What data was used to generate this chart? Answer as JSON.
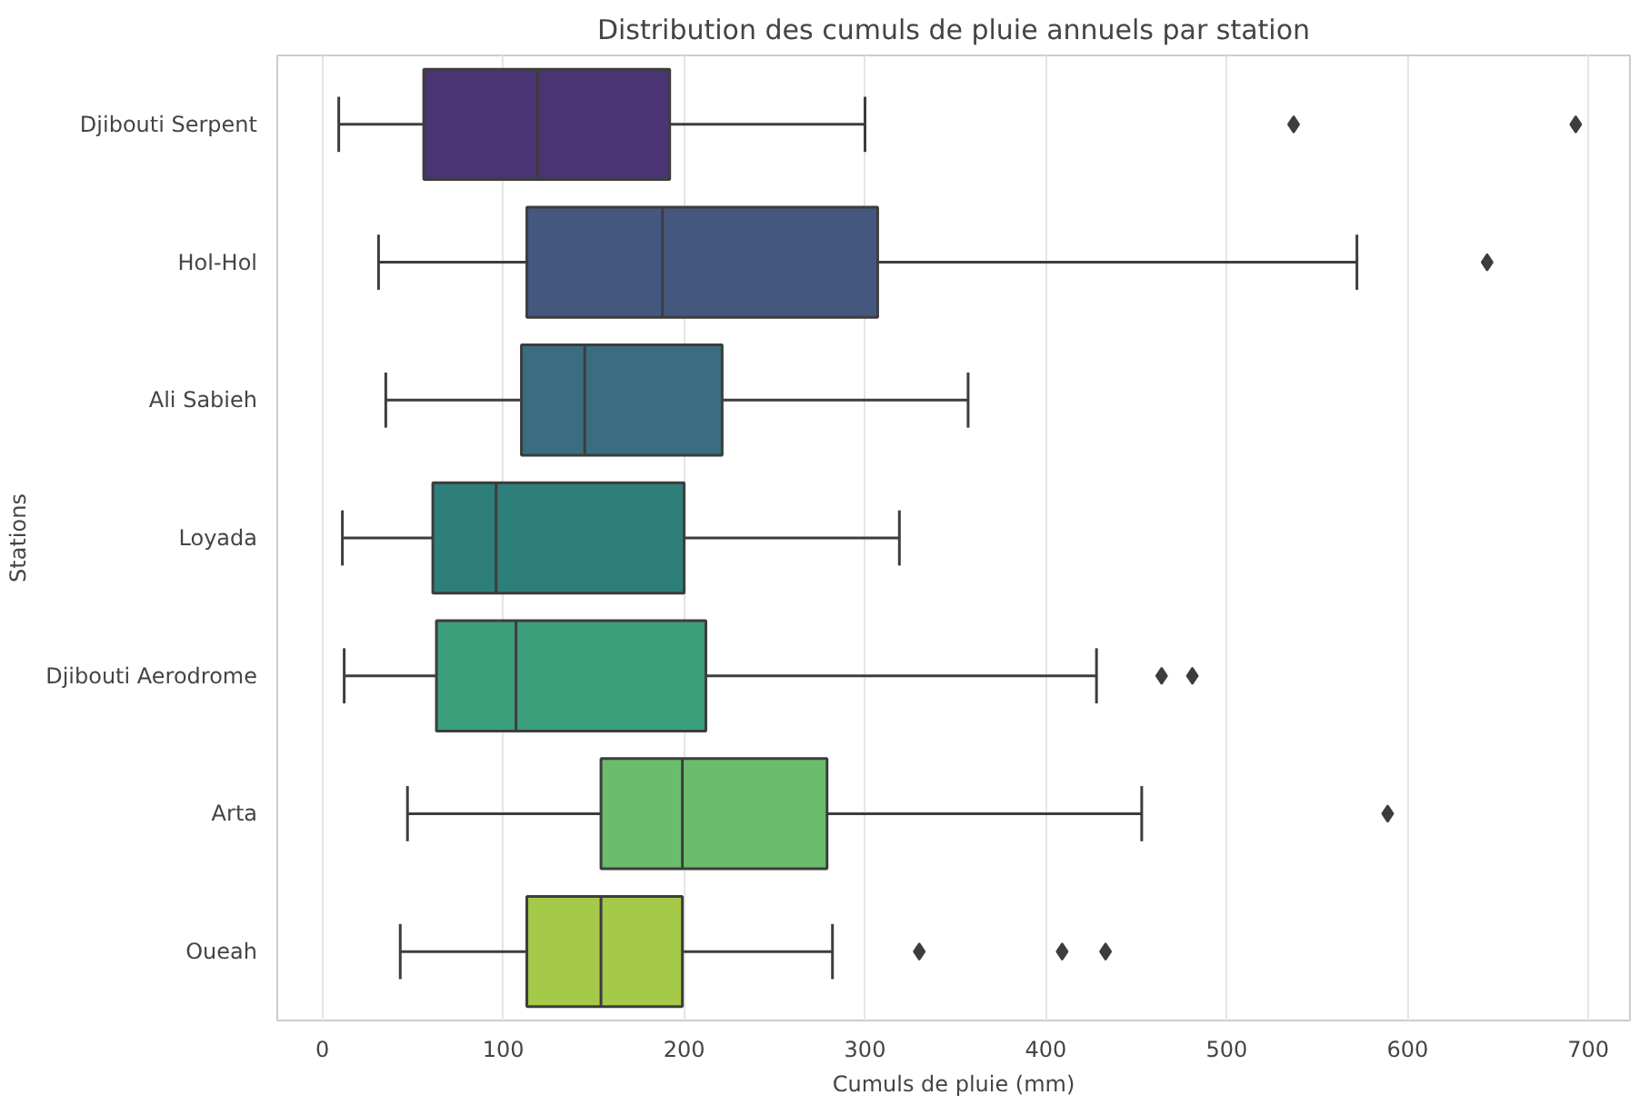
{
  "chart_data": {
    "type": "box",
    "orientation": "horizontal",
    "title": "Distribution des cumuls de pluie annuels par station",
    "xlabel": "Cumuls de pluie (mm)",
    "ylabel": "Stations",
    "categories": [
      "Djibouti Serpent",
      "Hol-Hol",
      "Ali Sabieh",
      "Loyada",
      "Djibouti Aerodrome",
      "Arta",
      "Oueah"
    ],
    "colors": [
      "#4b3473",
      "#44577f",
      "#3a6d80",
      "#2e7f7a",
      "#3b9e7b",
      "#6bbd6b",
      "#a5c948"
    ],
    "boxes": [
      {
        "low": 9,
        "q1": 56,
        "median": 119,
        "q3": 192,
        "high": 300,
        "outliers": [
          537,
          693
        ]
      },
      {
        "low": 31,
        "q1": 113,
        "median": 188,
        "q3": 307,
        "high": 572,
        "outliers": [
          644
        ]
      },
      {
        "low": 35,
        "q1": 110,
        "median": 145,
        "q3": 221,
        "high": 357
      },
      {
        "low": 11,
        "q1": 61,
        "median": 96,
        "q3": 200,
        "high": 319
      },
      {
        "low": 12,
        "q1": 63,
        "median": 107,
        "q3": 212,
        "high": 428,
        "outliers": [
          464,
          481
        ]
      },
      {
        "low": 47,
        "q1": 154,
        "median": 199,
        "q3": 279,
        "high": 453,
        "outliers": [
          589
        ]
      },
      {
        "low": 43,
        "q1": 113,
        "median": 154,
        "q3": 199,
        "high": 282,
        "outliers": [
          330,
          409,
          433
        ]
      }
    ],
    "xlim": [
      -25,
      723
    ],
    "xticks": [
      0,
      100,
      200,
      300,
      400,
      500,
      600,
      700
    ],
    "grid": "x",
    "marker": "diamond"
  }
}
